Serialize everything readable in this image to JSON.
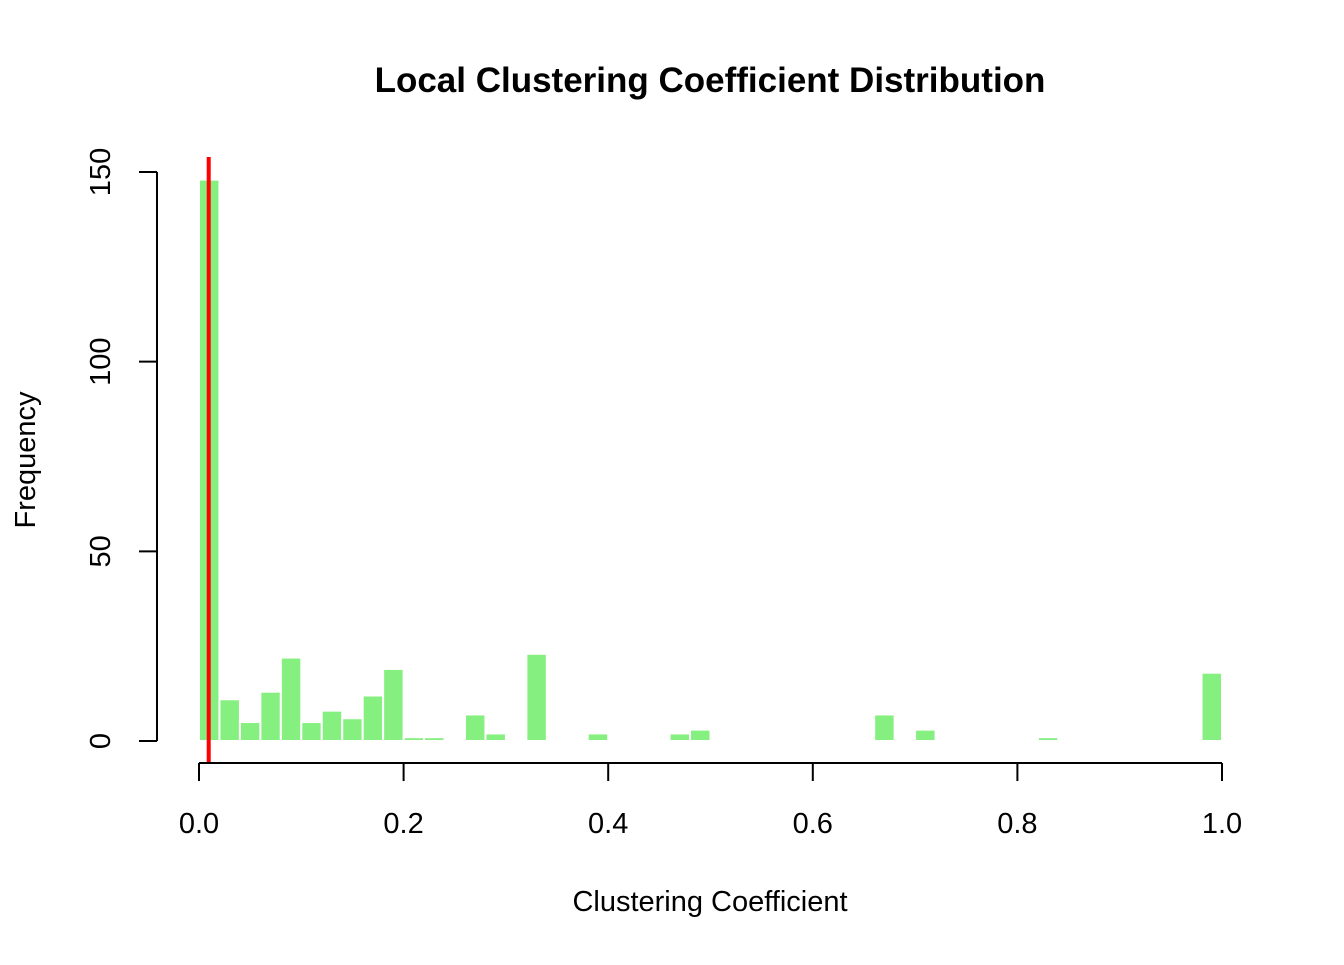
{
  "chart_data": {
    "type": "bar",
    "title": "Local Clustering Coefficient Distribution",
    "xlabel": "Clustering Coefficient",
    "ylabel": "Frequency",
    "xlim": [
      0,
      1
    ],
    "ylim": [
      0,
      150
    ],
    "bin_width": 0.02,
    "bins": [
      {
        "x0": 0.0,
        "x1": 0.02,
        "count": 148
      },
      {
        "x0": 0.02,
        "x1": 0.04,
        "count": 11
      },
      {
        "x0": 0.04,
        "x1": 0.06,
        "count": 5
      },
      {
        "x0": 0.06,
        "x1": 0.08,
        "count": 13
      },
      {
        "x0": 0.08,
        "x1": 0.1,
        "count": 22
      },
      {
        "x0": 0.1,
        "x1": 0.12,
        "count": 5
      },
      {
        "x0": 0.12,
        "x1": 0.14,
        "count": 8
      },
      {
        "x0": 0.14,
        "x1": 0.16,
        "count": 6
      },
      {
        "x0": 0.16,
        "x1": 0.18,
        "count": 12
      },
      {
        "x0": 0.18,
        "x1": 0.2,
        "count": 19
      },
      {
        "x0": 0.2,
        "x1": 0.22,
        "count": 1
      },
      {
        "x0": 0.22,
        "x1": 0.24,
        "count": 1
      },
      {
        "x0": 0.26,
        "x1": 0.28,
        "count": 7
      },
      {
        "x0": 0.28,
        "x1": 0.3,
        "count": 2
      },
      {
        "x0": 0.32,
        "x1": 0.34,
        "count": 23
      },
      {
        "x0": 0.38,
        "x1": 0.4,
        "count": 2
      },
      {
        "x0": 0.46,
        "x1": 0.48,
        "count": 2
      },
      {
        "x0": 0.48,
        "x1": 0.5,
        "count": 3
      },
      {
        "x0": 0.66,
        "x1": 0.68,
        "count": 7
      },
      {
        "x0": 0.7,
        "x1": 0.72,
        "count": 3
      },
      {
        "x0": 0.82,
        "x1": 0.84,
        "count": 1
      },
      {
        "x0": 0.98,
        "x1": 1.0,
        "count": 18
      }
    ],
    "reference_line": {
      "x": 0.0095,
      "color": "#ff0000"
    },
    "x_ticks": [
      {
        "value": 0.0,
        "label": "0.0"
      },
      {
        "value": 0.2,
        "label": "0.2"
      },
      {
        "value": 0.4,
        "label": "0.4"
      },
      {
        "value": 0.6,
        "label": "0.6"
      },
      {
        "value": 0.8,
        "label": "0.8"
      },
      {
        "value": 1.0,
        "label": "1.0"
      }
    ],
    "y_ticks": [
      {
        "value": 0,
        "label": "0"
      },
      {
        "value": 50,
        "label": "50"
      },
      {
        "value": 100,
        "label": "100"
      },
      {
        "value": 150,
        "label": "150"
      }
    ],
    "grid": false,
    "bar_color": "#85ef80",
    "bar_border_color": "#ffffff"
  }
}
